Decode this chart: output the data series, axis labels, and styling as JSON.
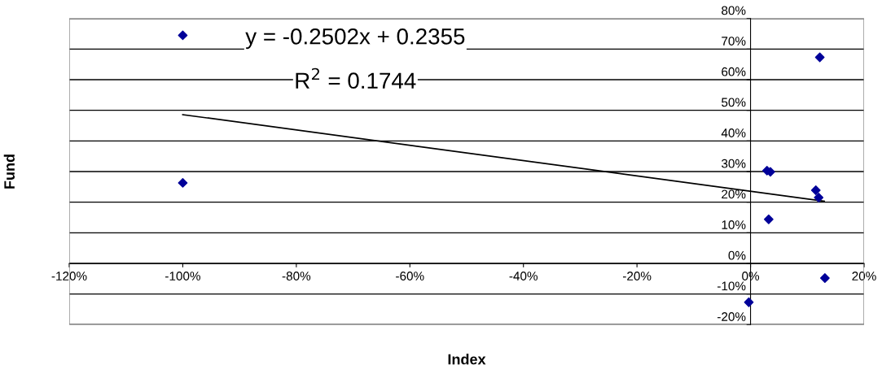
{
  "chart_data": {
    "type": "scatter",
    "xlabel": "Index",
    "ylabel": "Fund",
    "annotations": [
      "y = -0.2502x + 0.2355",
      "R$^{2}$ = 0.1744"
    ],
    "series": [
      {
        "color": "#000099",
        "marker": "diamond",
        "x": [
          -1.0,
          -1.0,
          0.122,
          0.029,
          0.035,
          0.115,
          0.12,
          0.032,
          0.131,
          -0.003
        ],
        "values": [
          0.745,
          0.263,
          0.673,
          0.303,
          0.299,
          0.239,
          0.215,
          0.144,
          -0.048,
          -0.127
        ]
      },
      {
        "type": "line",
        "color": "#000000",
        "marker": "none",
        "line_style": "solid",
        "x": [
          -1.0,
          0.13
        ],
        "values": [
          0.486,
          0.203
        ]
      }
    ],
    "xlim": [
      -1.2,
      0.2
    ],
    "ylim": [
      -0.2,
      0.8
    ],
    "xticks": [
      {
        "value": -1.2,
        "label": "-120%"
      },
      {
        "value": -1.0,
        "label": "-100%"
      },
      {
        "value": -0.8,
        "label": "-80%"
      },
      {
        "value": -0.6,
        "label": "-60%"
      },
      {
        "value": -0.4,
        "label": "-40%"
      },
      {
        "value": -0.2,
        "label": "-20%"
      },
      {
        "value": 0,
        "label": "0%"
      },
      {
        "value": 0.2,
        "label": "20%"
      }
    ],
    "yticks": [
      {
        "value": -0.2,
        "label": "-20%"
      },
      {
        "value": -0.1,
        "label": "-10%"
      },
      {
        "value": 0,
        "label": "0%"
      },
      {
        "value": 0.1,
        "label": "10%"
      },
      {
        "value": 0.2,
        "label": "20%"
      },
      {
        "value": 0.3,
        "label": "30%"
      },
      {
        "value": 0.4,
        "label": "40%"
      },
      {
        "value": 0.5,
        "label": "50%"
      },
      {
        "value": 0.6,
        "label": "60%"
      },
      {
        "value": 0.7,
        "label": "70%"
      },
      {
        "value": 0.8,
        "label": "80%"
      }
    ],
    "grid": "y",
    "legend": false
  }
}
